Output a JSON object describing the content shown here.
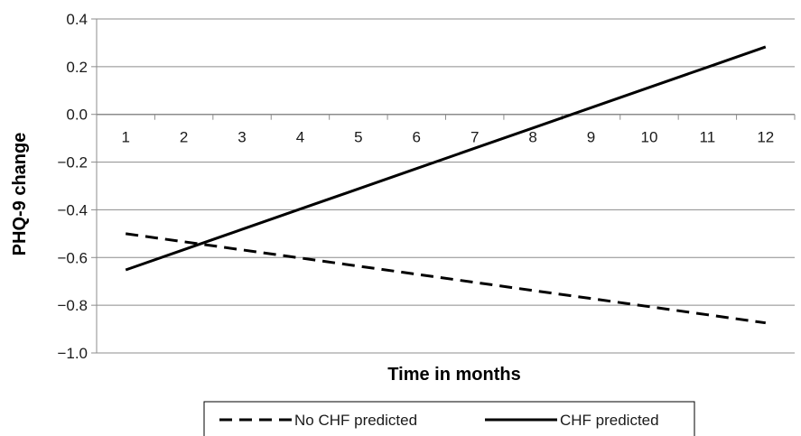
{
  "chart_data": {
    "type": "line",
    "title": "",
    "xlabel": "Time in months",
    "ylabel": "PHQ-9 change",
    "categories": [
      "1",
      "2",
      "3",
      "4",
      "5",
      "6",
      "7",
      "8",
      "9",
      "10",
      "11",
      "12"
    ],
    "ylim": [
      -1.0,
      0.4
    ],
    "yticks": [
      "0.4",
      "0.2",
      "0.0",
      "−0.2",
      "−0.4",
      "−0.6",
      "−0.8",
      "−1.0"
    ],
    "ytick_values": [
      0.4,
      0.2,
      0.0,
      -0.2,
      -0.4,
      -0.6,
      -0.8,
      -1.0
    ],
    "grid": true,
    "legend_position": "bottom",
    "series": [
      {
        "name": "No CHF predicted",
        "style": "dashed",
        "color": "#000000",
        "values": [
          -0.5,
          -0.534,
          -0.568,
          -0.602,
          -0.636,
          -0.67,
          -0.704,
          -0.738,
          -0.772,
          -0.806,
          -0.84,
          -0.874
        ]
      },
      {
        "name": "CHF predicted",
        "style": "solid",
        "color": "#000000",
        "values": [
          -0.652,
          -0.567,
          -0.482,
          -0.397,
          -0.312,
          -0.227,
          -0.142,
          -0.057,
          0.028,
          0.113,
          0.198,
          0.283
        ]
      }
    ]
  }
}
